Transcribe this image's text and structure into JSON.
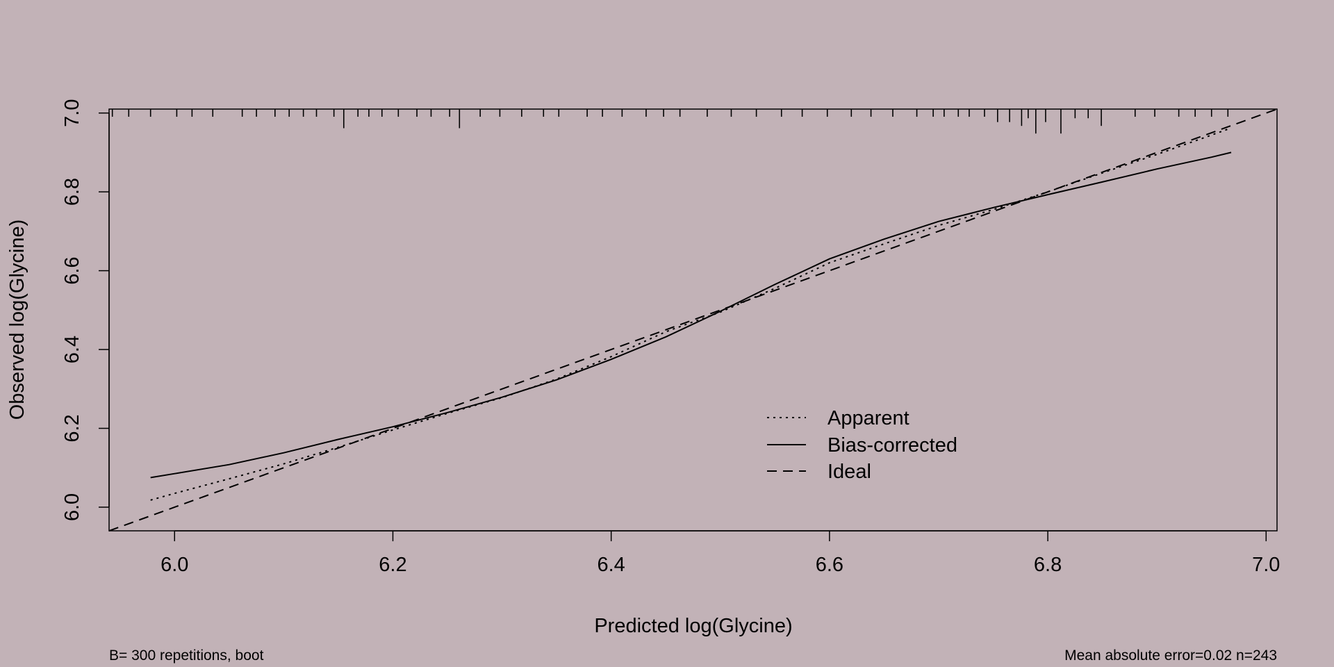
{
  "colors": {
    "background": "#c2b2b7",
    "ink": "#000000"
  },
  "chart_data": {
    "type": "line",
    "title": "",
    "xlabel": "Predicted log(Glycine)",
    "ylabel": "Observed log(Glycine)",
    "xlim": [
      5.94,
      7.01
    ],
    "ylim": [
      5.94,
      7.01
    ],
    "x_ticks": [
      6.0,
      6.2,
      6.4,
      6.6,
      6.8,
      7.0
    ],
    "x_tick_labels": [
      "6.0",
      "6.2",
      "6.4",
      "6.6",
      "6.8",
      "7.0"
    ],
    "y_ticks": [
      6.0,
      6.2,
      6.4,
      6.6,
      6.8,
      7.0
    ],
    "y_tick_labels": [
      "6.0",
      "6.2",
      "6.4",
      "6.6",
      "6.8",
      "7.0"
    ],
    "grid": false,
    "legend_position": "bottom-right",
    "series": [
      {
        "name": "Apparent",
        "style": "dotted",
        "x": [
          5.978,
          6.0,
          6.05,
          6.1,
          6.15,
          6.2,
          6.25,
          6.3,
          6.35,
          6.4,
          6.45,
          6.5,
          6.55,
          6.6,
          6.65,
          6.7,
          6.75,
          6.8,
          6.85,
          6.9,
          6.95,
          6.968
        ],
        "y": [
          6.018,
          6.035,
          6.072,
          6.11,
          6.152,
          6.196,
          6.238,
          6.278,
          6.325,
          6.382,
          6.445,
          6.495,
          6.555,
          6.62,
          6.668,
          6.715,
          6.755,
          6.8,
          6.848,
          6.895,
          6.944,
          6.962
        ]
      },
      {
        "name": "Bias-corrected",
        "style": "solid",
        "x": [
          5.978,
          6.0,
          6.05,
          6.1,
          6.15,
          6.2,
          6.25,
          6.3,
          6.35,
          6.4,
          6.45,
          6.5,
          6.55,
          6.6,
          6.65,
          6.7,
          6.75,
          6.8,
          6.85,
          6.9,
          6.95,
          6.968
        ],
        "y": [
          6.075,
          6.085,
          6.108,
          6.138,
          6.172,
          6.204,
          6.24,
          6.279,
          6.323,
          6.375,
          6.432,
          6.497,
          6.565,
          6.63,
          6.68,
          6.725,
          6.76,
          6.793,
          6.825,
          6.858,
          6.888,
          6.9
        ]
      },
      {
        "name": "Ideal",
        "style": "dashed",
        "x": [
          5.94,
          7.01
        ],
        "y": [
          5.94,
          7.01
        ]
      }
    ],
    "rug": [
      {
        "x": 5.943,
        "h": 1
      },
      {
        "x": 5.958,
        "h": 1
      },
      {
        "x": 5.978,
        "h": 1
      },
      {
        "x": 6.002,
        "h": 1
      },
      {
        "x": 6.016,
        "h": 1
      },
      {
        "x": 6.035,
        "h": 1
      },
      {
        "x": 6.062,
        "h": 1
      },
      {
        "x": 6.075,
        "h": 1
      },
      {
        "x": 6.092,
        "h": 1
      },
      {
        "x": 6.105,
        "h": 1
      },
      {
        "x": 6.118,
        "h": 1
      },
      {
        "x": 6.13,
        "h": 1
      },
      {
        "x": 6.146,
        "h": 1
      },
      {
        "x": 6.155,
        "h": 2.5
      },
      {
        "x": 6.168,
        "h": 1
      },
      {
        "x": 6.178,
        "h": 1
      },
      {
        "x": 6.19,
        "h": 1
      },
      {
        "x": 6.205,
        "h": 1
      },
      {
        "x": 6.222,
        "h": 1
      },
      {
        "x": 6.235,
        "h": 1
      },
      {
        "x": 6.252,
        "h": 1
      },
      {
        "x": 6.261,
        "h": 2.5
      },
      {
        "x": 6.28,
        "h": 1
      },
      {
        "x": 6.298,
        "h": 1
      },
      {
        "x": 6.318,
        "h": 1
      },
      {
        "x": 6.338,
        "h": 1
      },
      {
        "x": 6.352,
        "h": 1
      },
      {
        "x": 6.378,
        "h": 1
      },
      {
        "x": 6.392,
        "h": 1
      },
      {
        "x": 6.41,
        "h": 1
      },
      {
        "x": 6.432,
        "h": 1
      },
      {
        "x": 6.448,
        "h": 1
      },
      {
        "x": 6.463,
        "h": 1
      },
      {
        "x": 6.488,
        "h": 1
      },
      {
        "x": 6.51,
        "h": 1
      },
      {
        "x": 6.533,
        "h": 1
      },
      {
        "x": 6.556,
        "h": 1
      },
      {
        "x": 6.575,
        "h": 1
      },
      {
        "x": 6.598,
        "h": 1
      },
      {
        "x": 6.62,
        "h": 1
      },
      {
        "x": 6.638,
        "h": 1
      },
      {
        "x": 6.658,
        "h": 1
      },
      {
        "x": 6.68,
        "h": 1
      },
      {
        "x": 6.695,
        "h": 1
      },
      {
        "x": 6.705,
        "h": 1
      },
      {
        "x": 6.718,
        "h": 1
      },
      {
        "x": 6.728,
        "h": 1
      },
      {
        "x": 6.742,
        "h": 1
      },
      {
        "x": 6.754,
        "h": 1.7
      },
      {
        "x": 6.765,
        "h": 1.7
      },
      {
        "x": 6.776,
        "h": 2.2
      },
      {
        "x": 6.782,
        "h": 1.2
      },
      {
        "x": 6.789,
        "h": 3.2
      },
      {
        "x": 6.798,
        "h": 1.7
      },
      {
        "x": 6.812,
        "h": 3.2
      },
      {
        "x": 6.825,
        "h": 1.2
      },
      {
        "x": 6.837,
        "h": 1.2
      },
      {
        "x": 6.849,
        "h": 2.2
      },
      {
        "x": 6.88,
        "h": 1
      },
      {
        "x": 6.898,
        "h": 1
      },
      {
        "x": 6.92,
        "h": 1
      },
      {
        "x": 6.935,
        "h": 1
      },
      {
        "x": 6.95,
        "h": 1
      },
      {
        "x": 6.965,
        "h": 1
      }
    ]
  },
  "footnote_left": "B= 300 repetitions, boot",
  "footnote_right": "Mean absolute error=0.02 n=243"
}
